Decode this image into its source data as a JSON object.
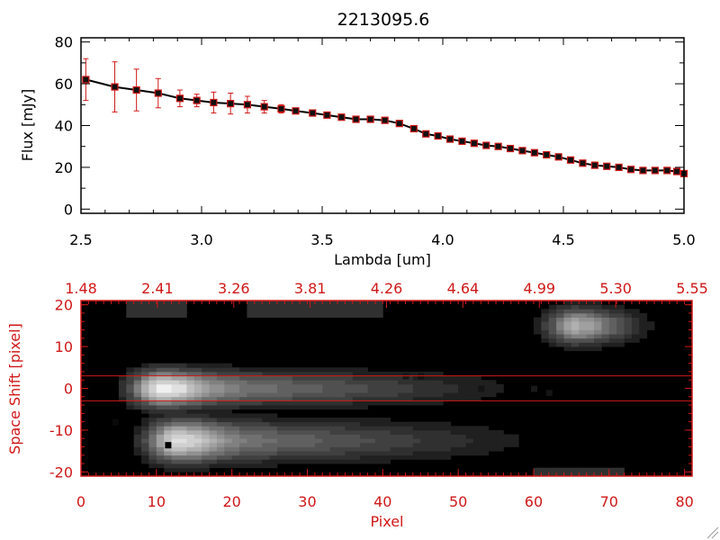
{
  "chart_data": [
    {
      "type": "line",
      "title": "2213095.6",
      "xlabel": "Lambda [um]",
      "ylabel": "Flux [mJy]",
      "xlim": [
        2.5,
        5.0
      ],
      "ylim": [
        -2,
        82
      ],
      "xticks": [
        "2.5",
        "3.0",
        "3.5",
        "4.0",
        "4.5",
        "5.0"
      ],
      "yticks": [
        "0",
        "20",
        "40",
        "60",
        "80"
      ],
      "colors": {
        "line": "#000000",
        "marker": "#d01818",
        "errorbar": "#d01818",
        "axes": "#000000"
      },
      "series": [
        {
          "x": [
            2.52,
            2.64,
            2.73,
            2.82,
            2.91,
            2.98,
            3.05,
            3.12,
            3.19,
            3.26,
            3.33,
            3.39,
            3.46,
            3.52,
            3.58,
            3.64,
            3.7,
            3.76,
            3.82,
            3.88,
            3.93,
            3.98,
            4.03,
            4.08,
            4.13,
            4.18,
            4.23,
            4.28,
            4.33,
            4.38,
            4.43,
            4.48,
            4.53,
            4.58,
            4.63,
            4.68,
            4.73,
            4.78,
            4.83,
            4.88,
            4.93,
            4.97,
            5.0
          ],
          "y": [
            62,
            58.5,
            57,
            55.5,
            53,
            52,
            51,
            50.5,
            50,
            49,
            48,
            47,
            46,
            45,
            44,
            43,
            43,
            42.5,
            41,
            38.5,
            36,
            35,
            33.5,
            32.5,
            31.5,
            30.5,
            30,
            29,
            28,
            27,
            26,
            25,
            23.5,
            22,
            21,
            20.5,
            20,
            19,
            18.5,
            18.5,
            18.5,
            18,
            17
          ],
          "yerr": [
            10,
            12,
            10,
            7,
            4,
            3,
            5,
            5,
            4,
            3,
            2,
            1,
            1,
            1,
            1,
            1,
            1,
            1,
            1,
            1,
            1,
            1,
            1,
            1,
            1,
            1,
            1,
            1,
            1,
            1,
            1,
            1,
            1,
            1,
            1,
            1,
            1,
            1,
            1,
            1,
            1,
            1,
            1
          ]
        }
      ]
    },
    {
      "type": "heatmap",
      "xlabel": "Pixel",
      "ylabel": "Space Shift [pixel]",
      "xlim": [
        0,
        81
      ],
      "ylim": [
        -21,
        21
      ],
      "xticks": [
        "0",
        "10",
        "20",
        "30",
        "40",
        "50",
        "60",
        "70",
        "80"
      ],
      "yticks": [
        "-20",
        "-10",
        "0",
        "10",
        "20"
      ],
      "top_xticks": [
        "1.48",
        "2.41",
        "3.26",
        "3.81",
        "4.26",
        "4.64",
        "4.99",
        "5.30",
        "5.55"
      ],
      "extraction_window": [
        -3,
        3
      ],
      "colormap": "grayscale",
      "colors": {
        "axes": "#d01818",
        "window_lines": "#d01818"
      },
      "sources": [
        {
          "x0": 11,
          "y0": 0,
          "peak": 245,
          "fade_to_x": 65,
          "y_width": 3.0
        },
        {
          "x0": 13,
          "y0": -12.5,
          "peak": 225,
          "fade_to_x": 68,
          "y_width": 3.5
        },
        {
          "x0": 66,
          "y0": 15,
          "peak": 175,
          "fade_to_x": 78,
          "y_width": 3.0
        }
      ],
      "hot_pixels": [
        {
          "x": 11.5,
          "y": -13.5,
          "value": 0
        },
        {
          "x": 4.5,
          "y": -8,
          "value": 10
        },
        {
          "x": 45,
          "y": 3,
          "value": 20
        },
        {
          "x": 53,
          "y": 0,
          "value": 20
        },
        {
          "x": 60,
          "y": 0,
          "value": 25
        },
        {
          "x": 62,
          "y": -1,
          "value": 20
        },
        {
          "x": 43,
          "y": 3,
          "value": 25
        }
      ]
    }
  ]
}
